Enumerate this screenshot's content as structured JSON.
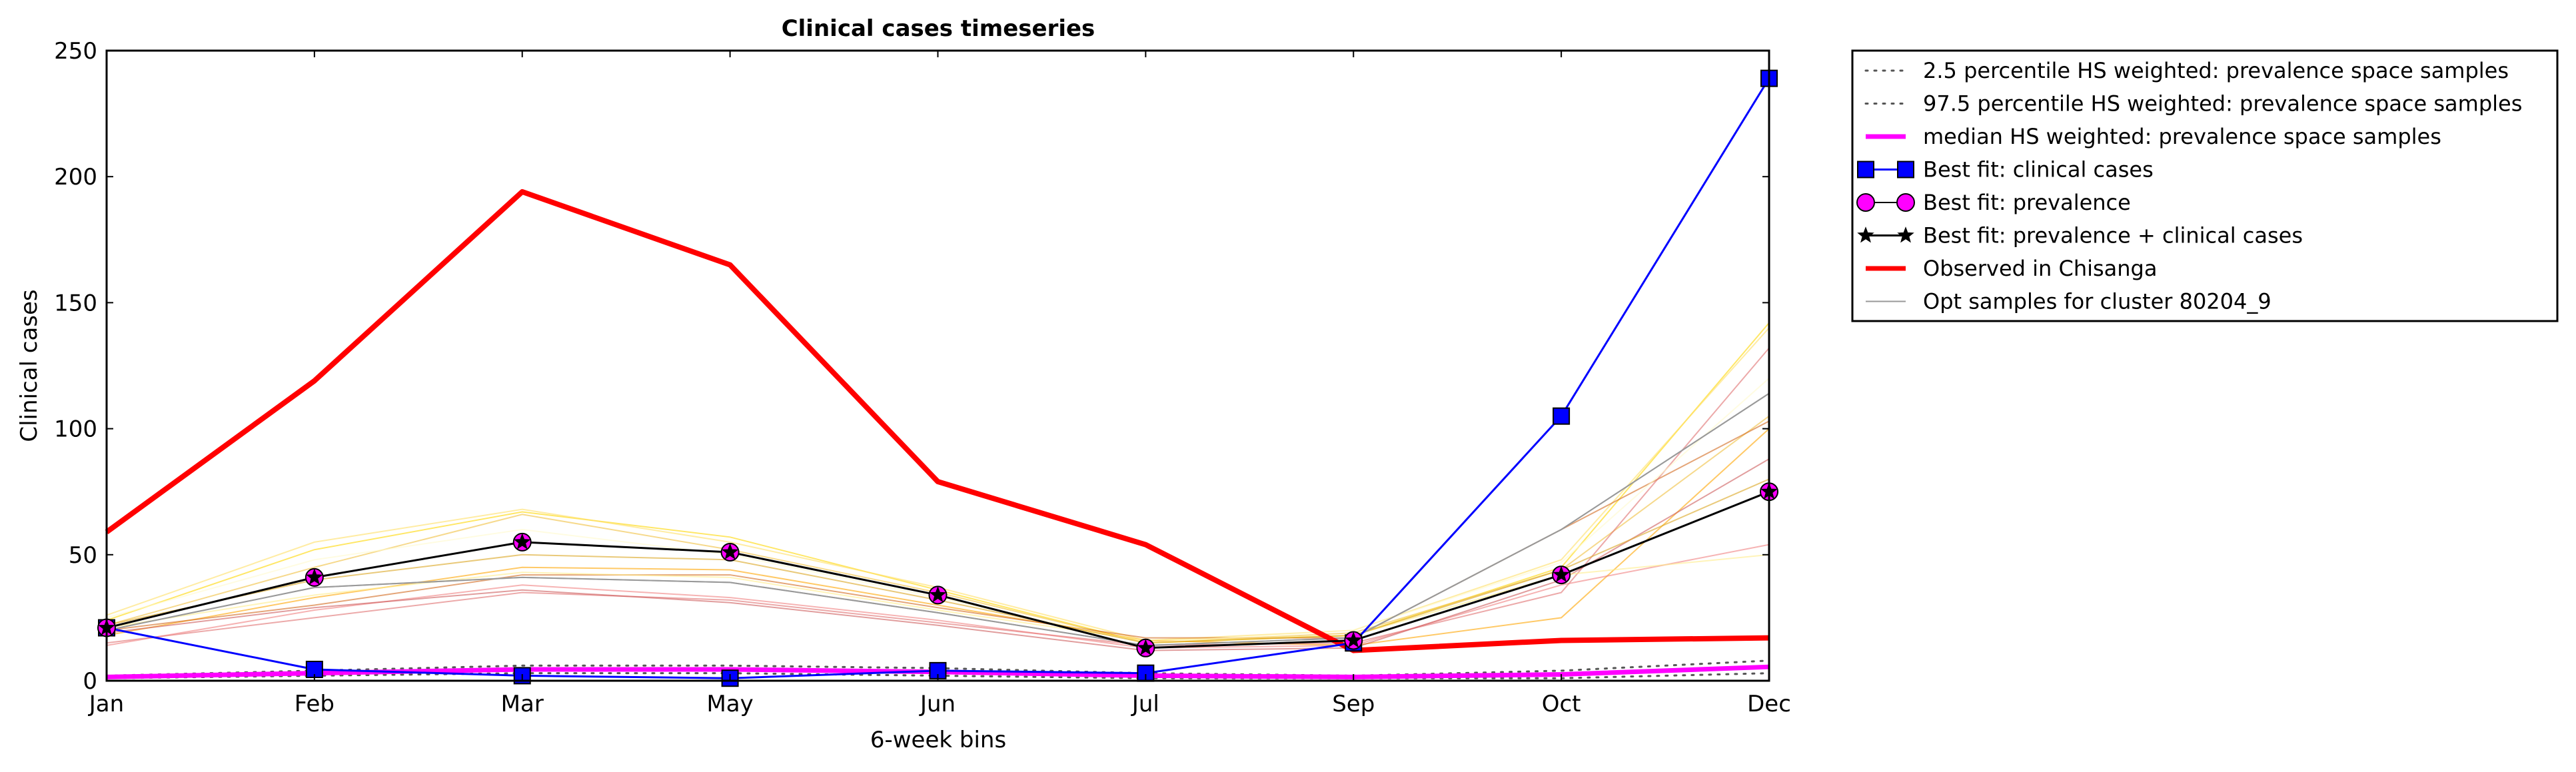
{
  "chart_data": {
    "type": "line",
    "title": "Clinical cases timeseries",
    "xlabel": "6-week bins",
    "ylabel": "Clinical cases",
    "categories": [
      "Jan",
      "Feb",
      "Mar",
      "May",
      "Jun",
      "Jul",
      "Sep",
      "Oct",
      "Dec"
    ],
    "ylim": [
      0,
      250
    ],
    "yticks": [
      "0",
      "50",
      "100",
      "150",
      "200",
      "250"
    ],
    "grid": false,
    "legend_position": "outside-top-right",
    "series": [
      {
        "name": "2.5 percentile HS weighted: prevalence space samples",
        "color": "#555555",
        "style": "dotted",
        "values": [
          1,
          2,
          3,
          3,
          2,
          1,
          1,
          1,
          3
        ]
      },
      {
        "name": "97.5 percentile HS weighted: prevalence space samples",
        "color": "#555555",
        "style": "dotted",
        "values": [
          2,
          4,
          6,
          6,
          5,
          3,
          2,
          4,
          8
        ]
      },
      {
        "name": "median HS weighted: prevalence space samples",
        "color": "#ff00ff",
        "style": "solid",
        "marker": "none",
        "values": [
          1.5,
          3,
          4.5,
          4.5,
          3.5,
          2,
          1.5,
          2.5,
          5.5
        ]
      },
      {
        "name": "Best fit: clinical cases",
        "color": "#0000ff",
        "style": "solid",
        "marker": "square",
        "values": [
          21,
          4.5,
          2,
          1,
          4,
          3,
          15,
          105,
          239
        ]
      },
      {
        "name": "Best fit: prevalence",
        "color": "#ff00ff",
        "style": "none",
        "marker": "circle",
        "values": [
          21,
          41,
          55,
          51,
          34,
          13,
          16,
          42,
          75
        ]
      },
      {
        "name": "Best fit: prevalence + clinical cases",
        "color": "#000000",
        "style": "solid",
        "marker": "star",
        "values": [
          21,
          41,
          55,
          51,
          34,
          13,
          16,
          42,
          75
        ]
      },
      {
        "name": "Observed in Chisanga",
        "color": "#ff0000",
        "style": "thick",
        "marker": "none",
        "values": [
          59,
          119,
          194,
          165,
          79,
          54,
          12,
          16,
          17
        ]
      },
      {
        "name": "Opt samples for cluster 80204_9",
        "color": "#999999",
        "style": "thin",
        "marker": "none",
        "values": [
          20,
          37,
          41,
          39,
          27,
          14,
          17,
          60,
          114
        ]
      }
    ],
    "sample_series": [
      {
        "color": "#ffd700",
        "values": [
          24,
          52,
          67,
          57,
          36,
          15,
          18,
          45,
          142
        ]
      },
      {
        "color": "#ffe066",
        "values": [
          26,
          55,
          68,
          55,
          37,
          16,
          20,
          48,
          140
        ]
      },
      {
        "color": "#f0c040",
        "values": [
          22,
          45,
          66,
          52,
          35,
          15,
          19,
          44,
          105
        ]
      },
      {
        "color": "#ffa500",
        "values": [
          18,
          33,
          45,
          44,
          30,
          16,
          14,
          25,
          100
        ]
      },
      {
        "color": "#d2691e",
        "values": [
          20,
          30,
          42,
          42,
          29,
          17,
          17,
          60,
          103
        ]
      },
      {
        "color": "#e07070",
        "values": [
          15,
          25,
          35,
          32,
          23,
          14,
          15,
          35,
          132
        ]
      },
      {
        "color": "#f08080",
        "values": [
          14,
          28,
          38,
          33,
          24,
          13,
          14,
          38,
          54
        ]
      },
      {
        "color": "#cd5c5c",
        "values": [
          19,
          29,
          36,
          31,
          22,
          12,
          13,
          40,
          88
        ]
      },
      {
        "color": "#fffacd",
        "values": [
          25,
          48,
          60,
          50,
          33,
          15,
          20,
          47,
          120
        ]
      },
      {
        "color": "#ffec8b",
        "values": [
          21,
          34,
          43,
          41,
          28,
          16,
          18,
          42,
          50
        ]
      },
      {
        "color": "#808080",
        "values": [
          20,
          37,
          41,
          39,
          27,
          14,
          17,
          60,
          114
        ]
      },
      {
        "color": "#daa520",
        "values": [
          22,
          40,
          50,
          48,
          32,
          15,
          18,
          44,
          80
        ]
      }
    ]
  }
}
